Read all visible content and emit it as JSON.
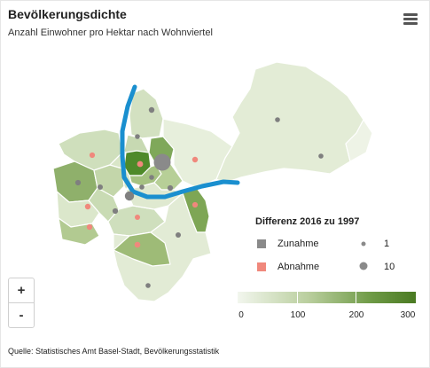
{
  "header": {
    "title": "Bevölkerungsdichte",
    "subtitle": "Anzahl Einwohner pro Hektar nach Wohnviertel"
  },
  "menu": {
    "icon": "hamburger-menu-icon"
  },
  "zoom": {
    "in_label": "+",
    "out_label": "-"
  },
  "legend": {
    "title": "Differenz 2016 zu 1997",
    "increase_label": "Zunahme",
    "decrease_label": "Abnahme",
    "size_small_label": "1",
    "size_large_label": "10",
    "colors": {
      "increase": "#8a8a8a",
      "decrease": "#f0887c",
      "river": "#1a8fcf"
    },
    "scale_labels": [
      "0",
      "100",
      "200",
      "300"
    ]
  },
  "source": "Quelle: Statistisches Amt Basel-Stadt, Bevölkerungsstatistik"
}
